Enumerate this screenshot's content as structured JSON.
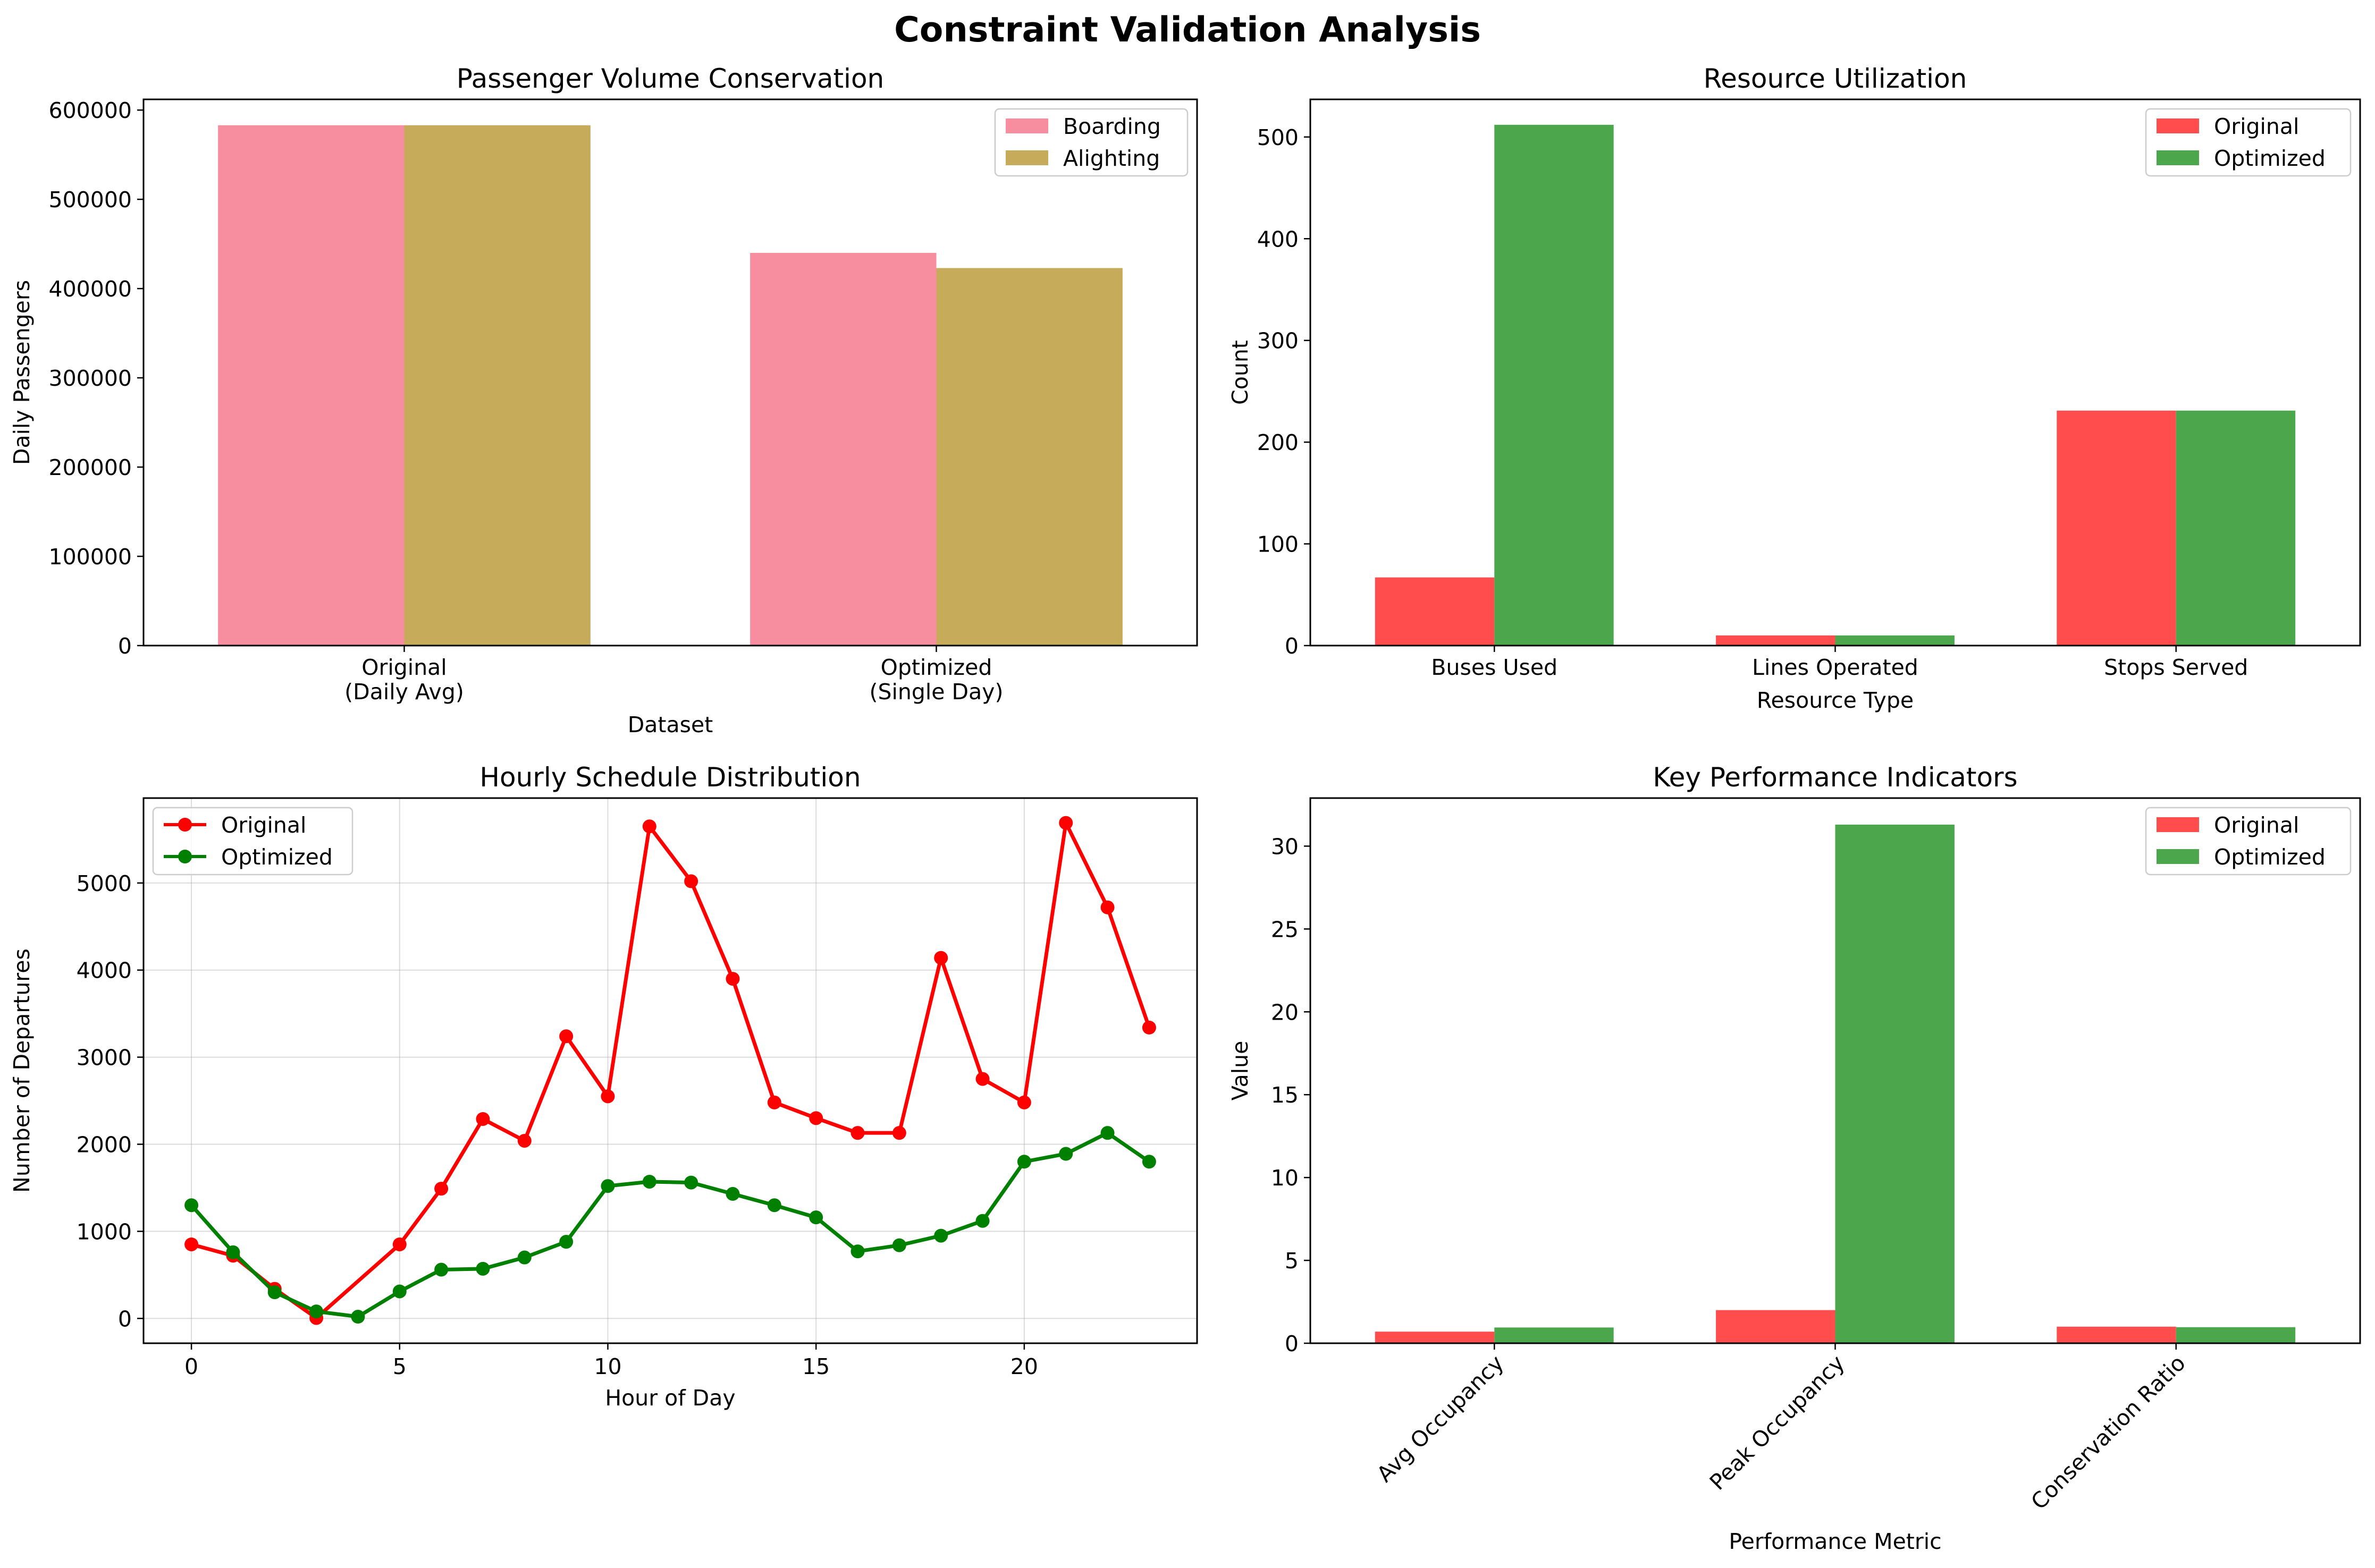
{
  "suptitle": "Constraint Validation Analysis",
  "colors": {
    "boarding": "#f68ea0",
    "alighting": "#c6ab5a",
    "original": "#ff4c4c",
    "optimized": "#4ca64c",
    "line_original": "#ff0000",
    "line_optimized": "#008000"
  },
  "chart_data": [
    {
      "type": "bar",
      "title": "Passenger Volume Conservation",
      "xlabel": "Dataset",
      "ylabel": "Daily Passengers",
      "categories": [
        "Original\n(Daily Avg)",
        "Optimized\n(Single Day)"
      ],
      "series": [
        {
          "name": "Boarding",
          "values": [
            583000,
            440000
          ]
        },
        {
          "name": "Alighting",
          "values": [
            583000,
            423000
          ]
        }
      ],
      "ylim": [
        0,
        612000
      ],
      "yticks": [
        0,
        100000,
        200000,
        300000,
        400000,
        500000,
        600000
      ],
      "legend": "top-right",
      "grid": false
    },
    {
      "type": "bar",
      "title": "Resource Utilization",
      "xlabel": "Resource Type",
      "ylabel": "Count",
      "categories": [
        "Buses Used",
        "Lines Operated",
        "Stops Served"
      ],
      "series": [
        {
          "name": "Original",
          "values": [
            67,
            10,
            231
          ]
        },
        {
          "name": "Optimized",
          "values": [
            512,
            10,
            231
          ]
        }
      ],
      "ylim": [
        0,
        537
      ],
      "yticks": [
        0,
        100,
        200,
        300,
        400,
        500
      ],
      "legend": "top-right",
      "grid": false
    },
    {
      "type": "line",
      "title": "Hourly Schedule Distribution",
      "xlabel": "Hour of Day",
      "ylabel": "Number of Departures",
      "series": [
        {
          "name": "Original",
          "x": [
            0,
            1,
            2,
            3,
            5,
            6,
            7,
            8,
            9,
            10,
            11,
            12,
            13,
            14,
            15,
            16,
            17,
            18,
            19,
            20,
            21,
            22,
            23
          ],
          "values": [
            850,
            720,
            340,
            5,
            850,
            1490,
            2290,
            2040,
            3240,
            2550,
            5650,
            5020,
            3900,
            2480,
            2300,
            2130,
            2130,
            4140,
            2750,
            2480,
            5690,
            4720,
            3340
          ]
        },
        {
          "name": "Optimized",
          "x": [
            0,
            1,
            2,
            3,
            4,
            5,
            6,
            7,
            8,
            9,
            10,
            11,
            12,
            13,
            14,
            15,
            16,
            17,
            18,
            19,
            20,
            21,
            22,
            23
          ],
          "values": [
            1300,
            760,
            300,
            80,
            20,
            310,
            560,
            570,
            700,
            880,
            1520,
            1570,
            1560,
            1430,
            1300,
            1160,
            770,
            840,
            950,
            1120,
            1800,
            1890,
            2130,
            1800
          ]
        }
      ],
      "xlim": [
        -1.15,
        24.15
      ],
      "ylim": [
        -285,
        5975
      ],
      "xticks": [
        0,
        5,
        10,
        15,
        20
      ],
      "yticks": [
        0,
        1000,
        2000,
        3000,
        4000,
        5000
      ],
      "legend": "top-left",
      "grid": true
    },
    {
      "type": "bar",
      "title": "Key Performance Indicators",
      "xlabel": "Performance Metric",
      "ylabel": "Value",
      "categories": [
        "Avg Occupancy",
        "Peak Occupancy",
        "Conservation Ratio"
      ],
      "series": [
        {
          "name": "Original",
          "values": [
            0.7,
            2.0,
            1.0
          ]
        },
        {
          "name": "Optimized",
          "values": [
            0.95,
            31.3,
            0.97
          ]
        }
      ],
      "ylim": [
        0,
        32.9
      ],
      "yticks": [
        0,
        5,
        10,
        15,
        20,
        25,
        30
      ],
      "legend": "top-right",
      "grid": false
    }
  ]
}
